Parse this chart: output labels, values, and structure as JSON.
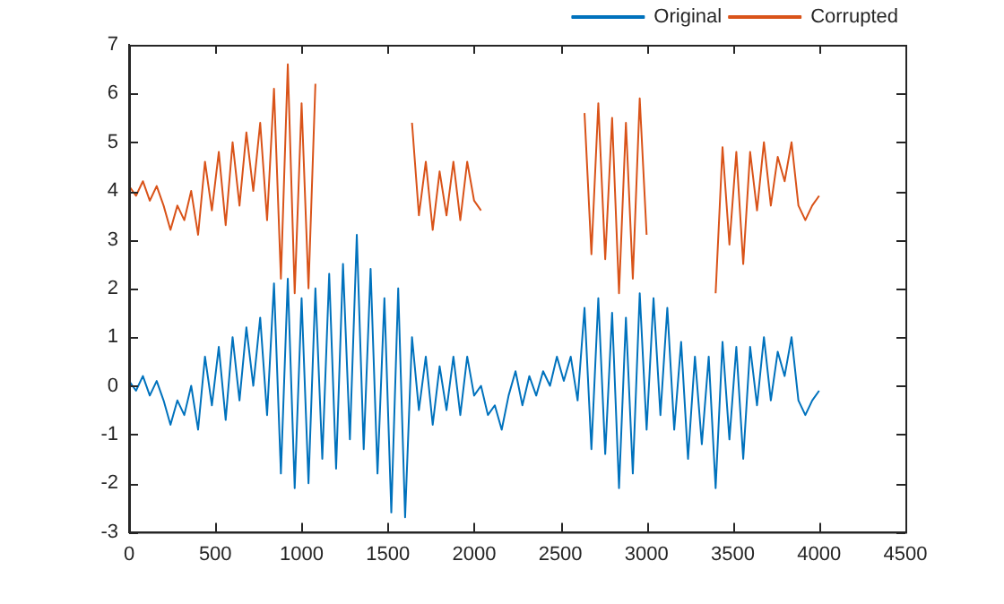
{
  "chart_data": {
    "type": "line",
    "xlim": [
      0,
      4500
    ],
    "xticks": [
      0,
      500,
      1000,
      1500,
      2000,
      2500,
      3000,
      3500,
      4000,
      4500
    ],
    "ylim": [
      -3,
      7
    ],
    "yticks": [
      -3,
      -2,
      -1,
      0,
      1,
      2,
      3,
      4,
      5,
      6,
      7
    ],
    "grid": false,
    "legend": "top right",
    "marker": "none",
    "line_style": "solid",
    "x": [
      0,
      40,
      80,
      120,
      160,
      200,
      240,
      280,
      320,
      360,
      400,
      440,
      480,
      520,
      560,
      600,
      640,
      680,
      720,
      760,
      800,
      840,
      880,
      920,
      960,
      1000,
      1040,
      1080,
      1120,
      1160,
      1200,
      1240,
      1280,
      1320,
      1360,
      1400,
      1440,
      1480,
      1520,
      1560,
      1600,
      1640,
      1680,
      1720,
      1760,
      1800,
      1840,
      1880,
      1920,
      1960,
      2000,
      2040,
      2080,
      2120,
      2160,
      2200,
      2240,
      2280,
      2320,
      2360,
      2400,
      2440,
      2480,
      2520,
      2560,
      2600,
      2640,
      2680,
      2720,
      2760,
      2800,
      2840,
      2880,
      2920,
      2960,
      3000,
      3040,
      3080,
      3120,
      3160,
      3200,
      3240,
      3280,
      3320,
      3360,
      3400,
      3440,
      3480,
      3520,
      3560,
      3600,
      3640,
      3680,
      3720,
      3760,
      3800,
      3840,
      3880,
      3920,
      3960,
      4000
    ],
    "series": [
      {
        "name": "Original",
        "color": "#0072bd",
        "values": [
          0.1,
          -0.1,
          0.2,
          -0.2,
          0.1,
          -0.3,
          -0.8,
          -0.3,
          -0.6,
          0.0,
          -0.9,
          0.6,
          -0.4,
          0.8,
          -0.7,
          1.0,
          -0.3,
          1.2,
          0.0,
          1.4,
          -0.6,
          2.1,
          -1.8,
          2.2,
          -2.1,
          1.8,
          -2.0,
          2.0,
          -1.5,
          2.3,
          -1.7,
          2.5,
          -1.1,
          3.1,
          -1.3,
          2.4,
          -1.8,
          1.8,
          -2.6,
          2.0,
          -2.7,
          1.0,
          -0.5,
          0.6,
          -0.8,
          0.4,
          -0.5,
          0.6,
          -0.6,
          0.6,
          -0.2,
          0.0,
          -0.6,
          -0.4,
          -0.9,
          -0.2,
          0.3,
          -0.4,
          0.2,
          -0.2,
          0.3,
          0.0,
          0.6,
          0.1,
          0.6,
          -0.3,
          1.6,
          -1.3,
          1.8,
          -1.4,
          1.5,
          -2.1,
          1.4,
          -1.8,
          1.9,
          -0.9,
          1.8,
          -0.6,
          1.6,
          -0.9,
          0.9,
          -1.5,
          0.6,
          -1.2,
          0.6,
          -2.1,
          0.9,
          -1.1,
          0.8,
          -1.5,
          0.8,
          -0.4,
          1.0,
          -0.3,
          0.7,
          0.2,
          1.0,
          -0.3,
          -0.6,
          -0.3,
          -0.1
        ]
      },
      {
        "name": "Corrupted",
        "color": "#d95319",
        "values": [
          4.1,
          3.9,
          4.2,
          3.8,
          4.1,
          3.7,
          3.2,
          3.7,
          3.4,
          4.0,
          3.1,
          4.6,
          3.6,
          4.8,
          3.3,
          5.0,
          3.7,
          5.2,
          4.0,
          5.4,
          3.4,
          6.1,
          2.2,
          6.6,
          1.9,
          5.8,
          2.0,
          6.2,
          null,
          null,
          null,
          null,
          null,
          null,
          null,
          null,
          null,
          null,
          null,
          null,
          null,
          5.4,
          3.5,
          4.6,
          3.2,
          4.4,
          3.5,
          4.6,
          3.4,
          4.6,
          3.8,
          3.6,
          null,
          null,
          null,
          null,
          null,
          null,
          null,
          null,
          null,
          null,
          null,
          null,
          null,
          null,
          5.6,
          2.7,
          5.8,
          2.6,
          5.5,
          1.9,
          5.4,
          2.2,
          5.9,
          3.1,
          null,
          null,
          null,
          null,
          null,
          null,
          null,
          null,
          null,
          1.9,
          4.9,
          2.9,
          4.8,
          2.5,
          4.8,
          3.6,
          5.0,
          3.7,
          4.7,
          4.2,
          5.0,
          3.7,
          3.4,
          3.7,
          3.9
        ]
      }
    ]
  }
}
